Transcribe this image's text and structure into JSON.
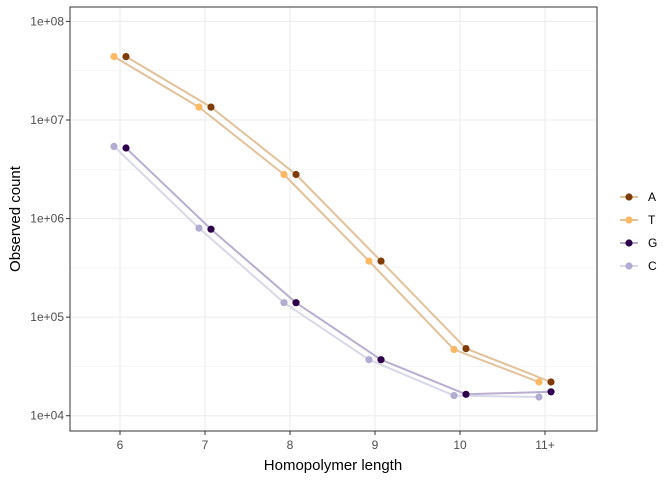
{
  "chart_data": {
    "type": "line",
    "xlabel": "Homopolymer length",
    "ylabel": "Observed count",
    "categories": [
      "6",
      "7",
      "8",
      "9",
      "10",
      "11+"
    ],
    "y_scale": "log10",
    "ylim": [
      7000,
      140000000
    ],
    "y_ticks": [
      10000,
      100000,
      1000000,
      10000000,
      100000000
    ],
    "y_tick_labels": [
      "1e+04",
      "1e+05",
      "1e+06",
      "1e+07",
      "1e+08"
    ],
    "grid": true,
    "legend_position": "right",
    "series": [
      {
        "name": "A",
        "color": "#7f3b08",
        "line_color": "#e2c29b",
        "values": [
          44000000,
          13500000,
          2800000,
          370000,
          48000,
          22000
        ]
      },
      {
        "name": "T",
        "color": "#fdb863",
        "line_color": "#e2c29b",
        "values": [
          44000000,
          13500000,
          2800000,
          370000,
          47000,
          22000
        ]
      },
      {
        "name": "G",
        "color": "#2d004b",
        "line_color": "#b9aed0",
        "values": [
          5200000,
          780000,
          140000,
          37000,
          16500,
          17500
        ]
      },
      {
        "name": "C",
        "color": "#b2abd2",
        "line_color": "#d8d8e8",
        "values": [
          5400000,
          800000,
          140000,
          37000,
          16000,
          15500
        ]
      }
    ]
  }
}
